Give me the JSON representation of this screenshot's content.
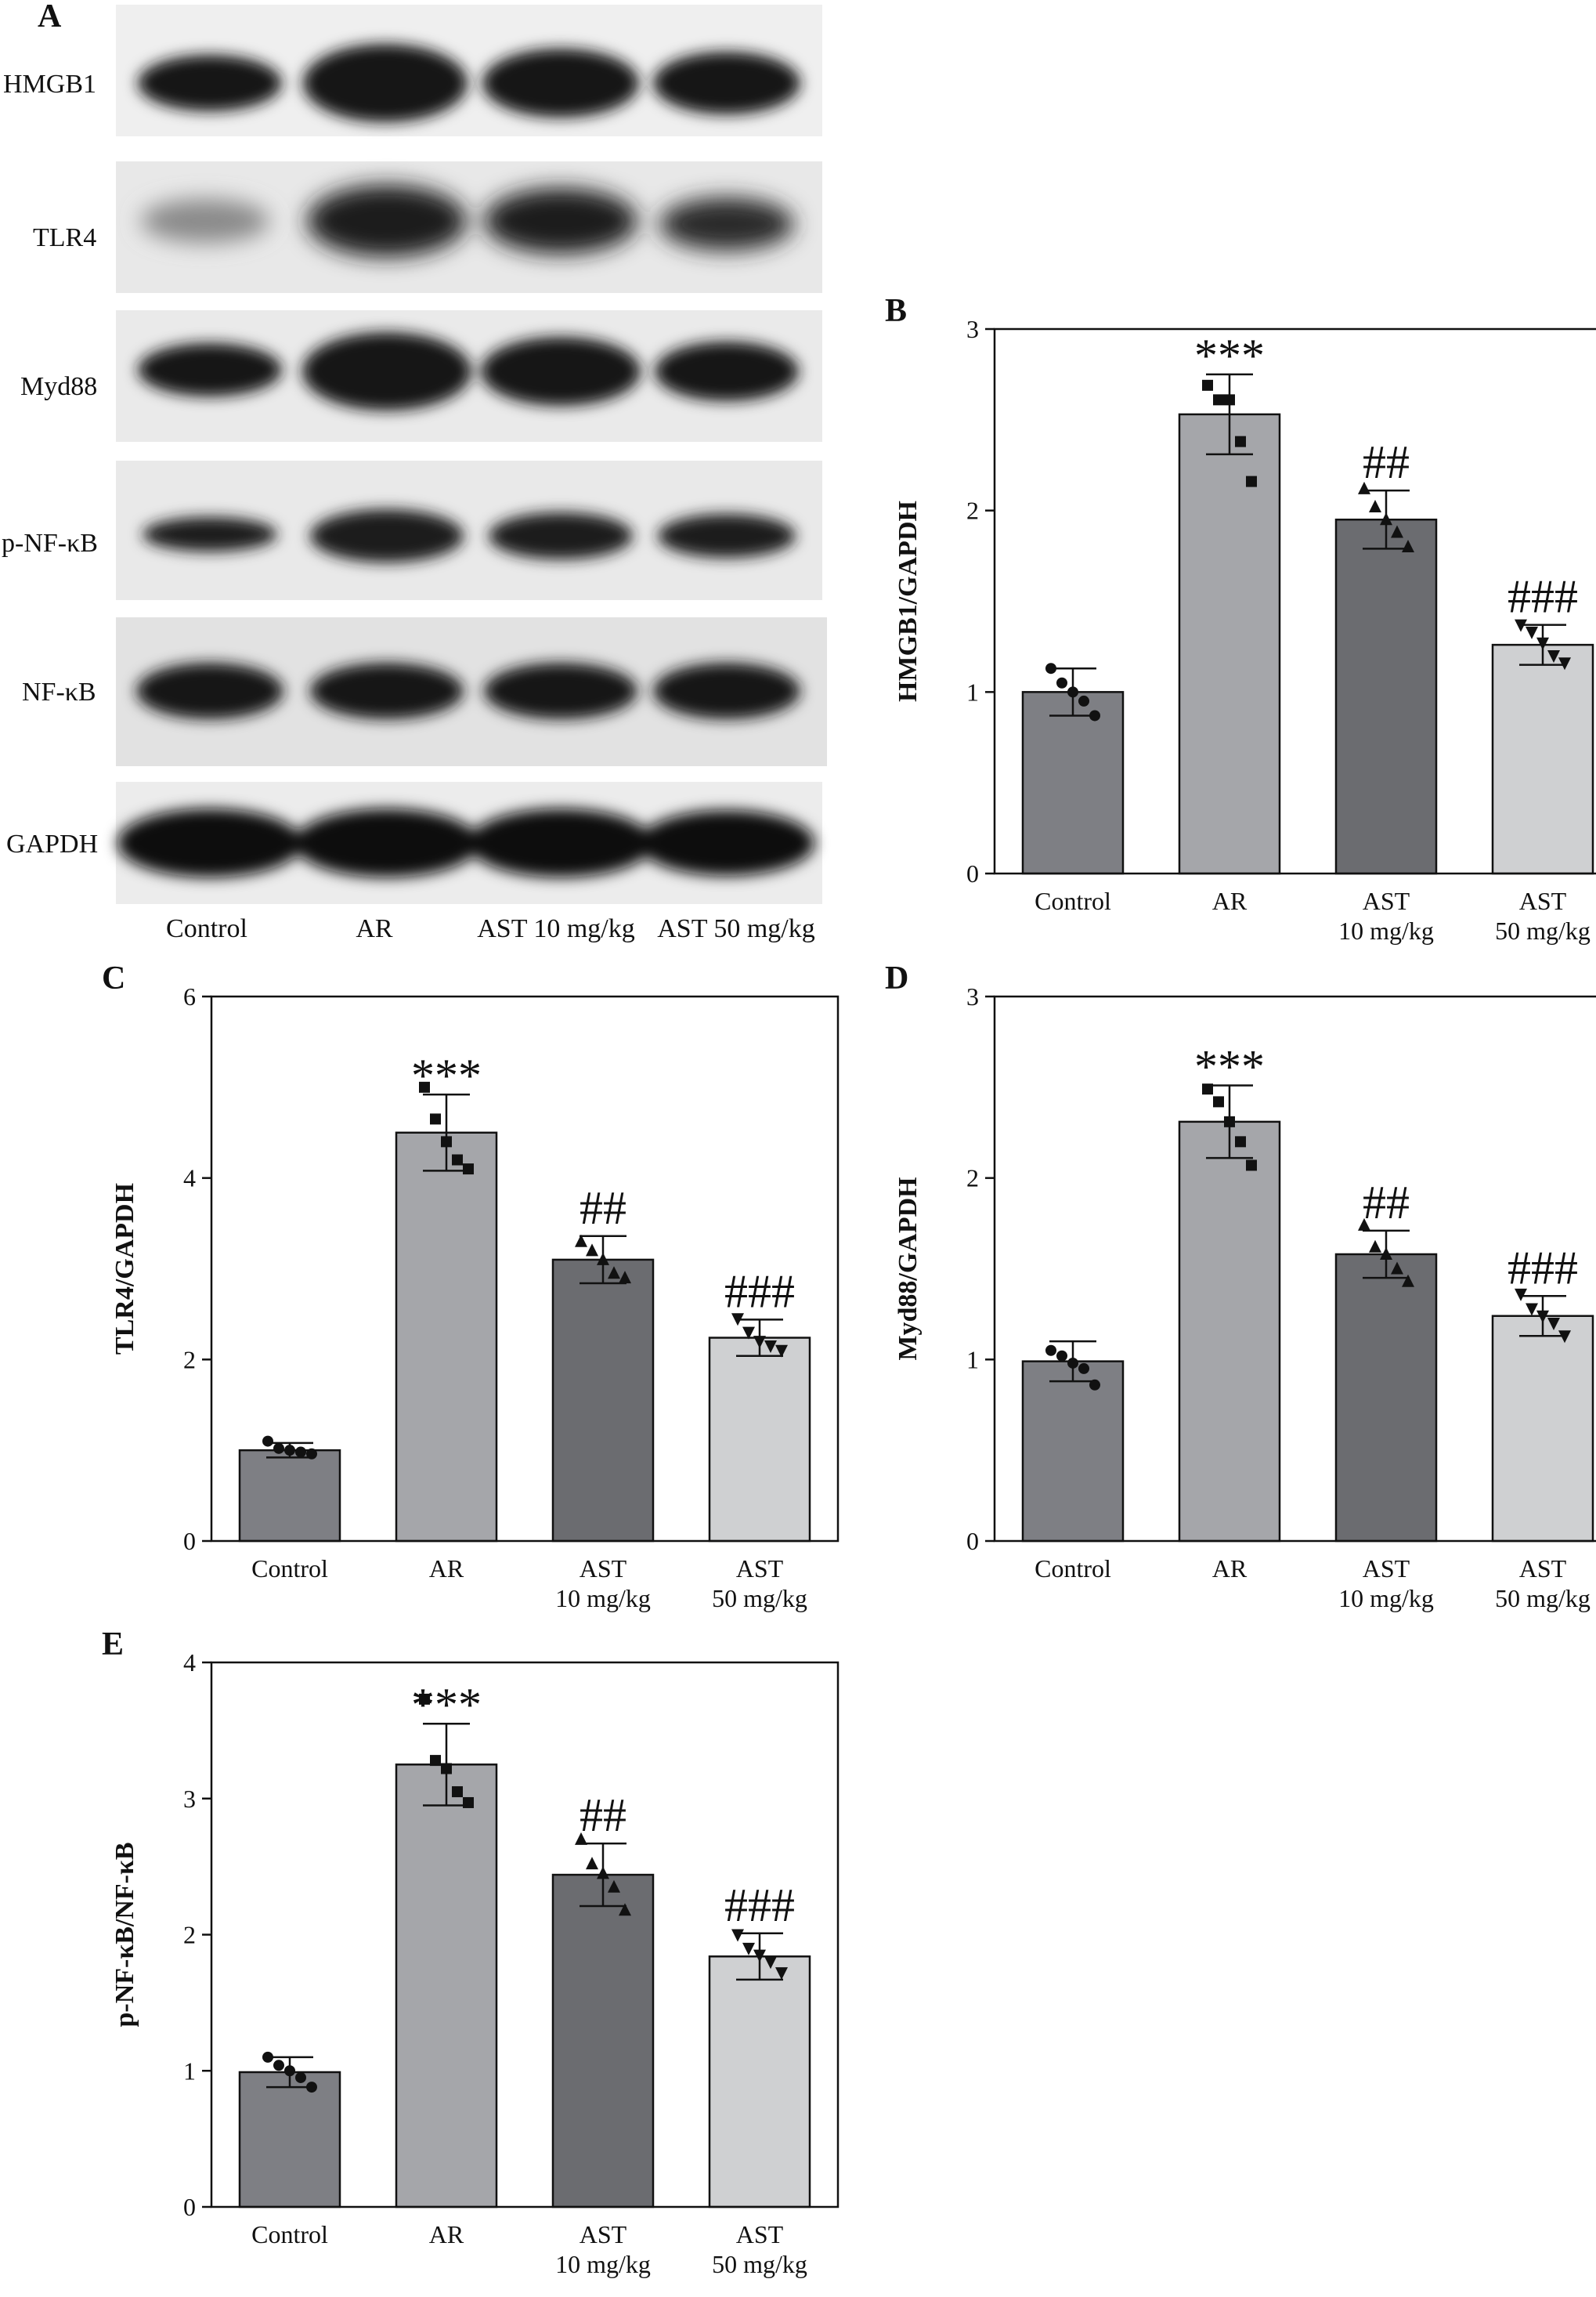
{
  "colors": {
    "Control": "#7e7f84",
    "AR": "#a5a6aa",
    "AST 10 mg/kg": "#6b6c70",
    "AST 50 mg/kg": "#cfd0d2"
  },
  "blot": {
    "panel": "A",
    "rows": [
      "HMGB1",
      "TLR4",
      "Myd88",
      "p-NF-κB",
      "NF-κB",
      "GAPDH"
    ],
    "lanes": [
      "Control",
      "AR",
      "AST 10 mg/kg",
      "AST 50 mg/kg"
    ]
  },
  "chart_data": [
    {
      "panel": "B",
      "type": "bar",
      "ylabel": "HMGB1/GAPDH",
      "ylim": [
        0,
        3
      ],
      "yticks": [
        "0",
        "1",
        "2",
        "3"
      ],
      "categories": [
        "Control",
        "AR",
        "AST",
        "AST"
      ],
      "sublabels": [
        "",
        "",
        "10 mg/kg",
        "50 mg/kg"
      ],
      "values": [
        1.0,
        2.53,
        1.95,
        1.26
      ],
      "errors": [
        0.13,
        0.22,
        0.16,
        0.11
      ],
      "significance": [
        "",
        "***",
        "##",
        "###"
      ],
      "points": [
        [
          1.13,
          1.05,
          1.0,
          0.95,
          0.87
        ],
        [
          2.69,
          2.61,
          2.61,
          2.38,
          2.16
        ],
        [
          2.12,
          2.02,
          1.95,
          1.88,
          1.8
        ],
        [
          1.37,
          1.33,
          1.27,
          1.2,
          1.16
        ]
      ]
    },
    {
      "panel": "C",
      "type": "bar",
      "ylabel": "TLR4/GAPDH",
      "ylim": [
        0,
        6
      ],
      "yticks": [
        "0",
        "2",
        "4",
        "6"
      ],
      "categories": [
        "Control",
        "AR",
        "AST",
        "AST"
      ],
      "sublabels": [
        "",
        "",
        "10 mg/kg",
        "50 mg/kg"
      ],
      "values": [
        1.0,
        4.5,
        3.1,
        2.24
      ],
      "errors": [
        0.08,
        0.42,
        0.26,
        0.2
      ],
      "significance": [
        "",
        "***",
        "##",
        "###"
      ],
      "points": [
        [
          1.1,
          1.02,
          1.0,
          0.98,
          0.96
        ],
        [
          5.0,
          4.65,
          4.4,
          4.2,
          4.1
        ],
        [
          3.3,
          3.2,
          3.1,
          2.95,
          2.9
        ],
        [
          2.45,
          2.3,
          2.2,
          2.15,
          2.1
        ]
      ]
    },
    {
      "panel": "D",
      "type": "bar",
      "ylabel": "Myd88/GAPDH",
      "ylim": [
        0,
        3
      ],
      "yticks": [
        "0",
        "1",
        "2",
        "3"
      ],
      "categories": [
        "Control",
        "AR",
        "AST",
        "AST"
      ],
      "sublabels": [
        "",
        "",
        "10 mg/kg",
        "50 mg/kg"
      ],
      "values": [
        0.99,
        2.31,
        1.58,
        1.24
      ],
      "errors": [
        0.11,
        0.2,
        0.13,
        0.11
      ],
      "significance": [
        "",
        "***",
        "##",
        "###"
      ],
      "points": [
        [
          1.05,
          1.02,
          0.98,
          0.95,
          0.86
        ],
        [
          2.49,
          2.42,
          2.31,
          2.2,
          2.07
        ],
        [
          1.74,
          1.62,
          1.58,
          1.5,
          1.43
        ],
        [
          1.36,
          1.28,
          1.24,
          1.2,
          1.13
        ]
      ]
    },
    {
      "panel": "E",
      "type": "bar",
      "ylabel": "p-NF-κB/NF-κB",
      "ylim": [
        0,
        4
      ],
      "yticks": [
        "0",
        "1",
        "2",
        "3",
        "4"
      ],
      "categories": [
        "Control",
        "AR",
        "AST",
        "AST"
      ],
      "sublabels": [
        "",
        "",
        "10 mg/kg",
        "50 mg/kg"
      ],
      "values": [
        0.99,
        3.25,
        2.44,
        1.84
      ],
      "errors": [
        0.11,
        0.3,
        0.23,
        0.17
      ],
      "significance": [
        "",
        "***",
        "##",
        "###"
      ],
      "points": [
        [
          1.1,
          1.04,
          1.0,
          0.95,
          0.88
        ],
        [
          3.73,
          3.28,
          3.22,
          3.05,
          2.97
        ],
        [
          2.7,
          2.52,
          2.45,
          2.35,
          2.18
        ],
        [
          2.0,
          1.9,
          1.85,
          1.8,
          1.72
        ]
      ]
    }
  ]
}
